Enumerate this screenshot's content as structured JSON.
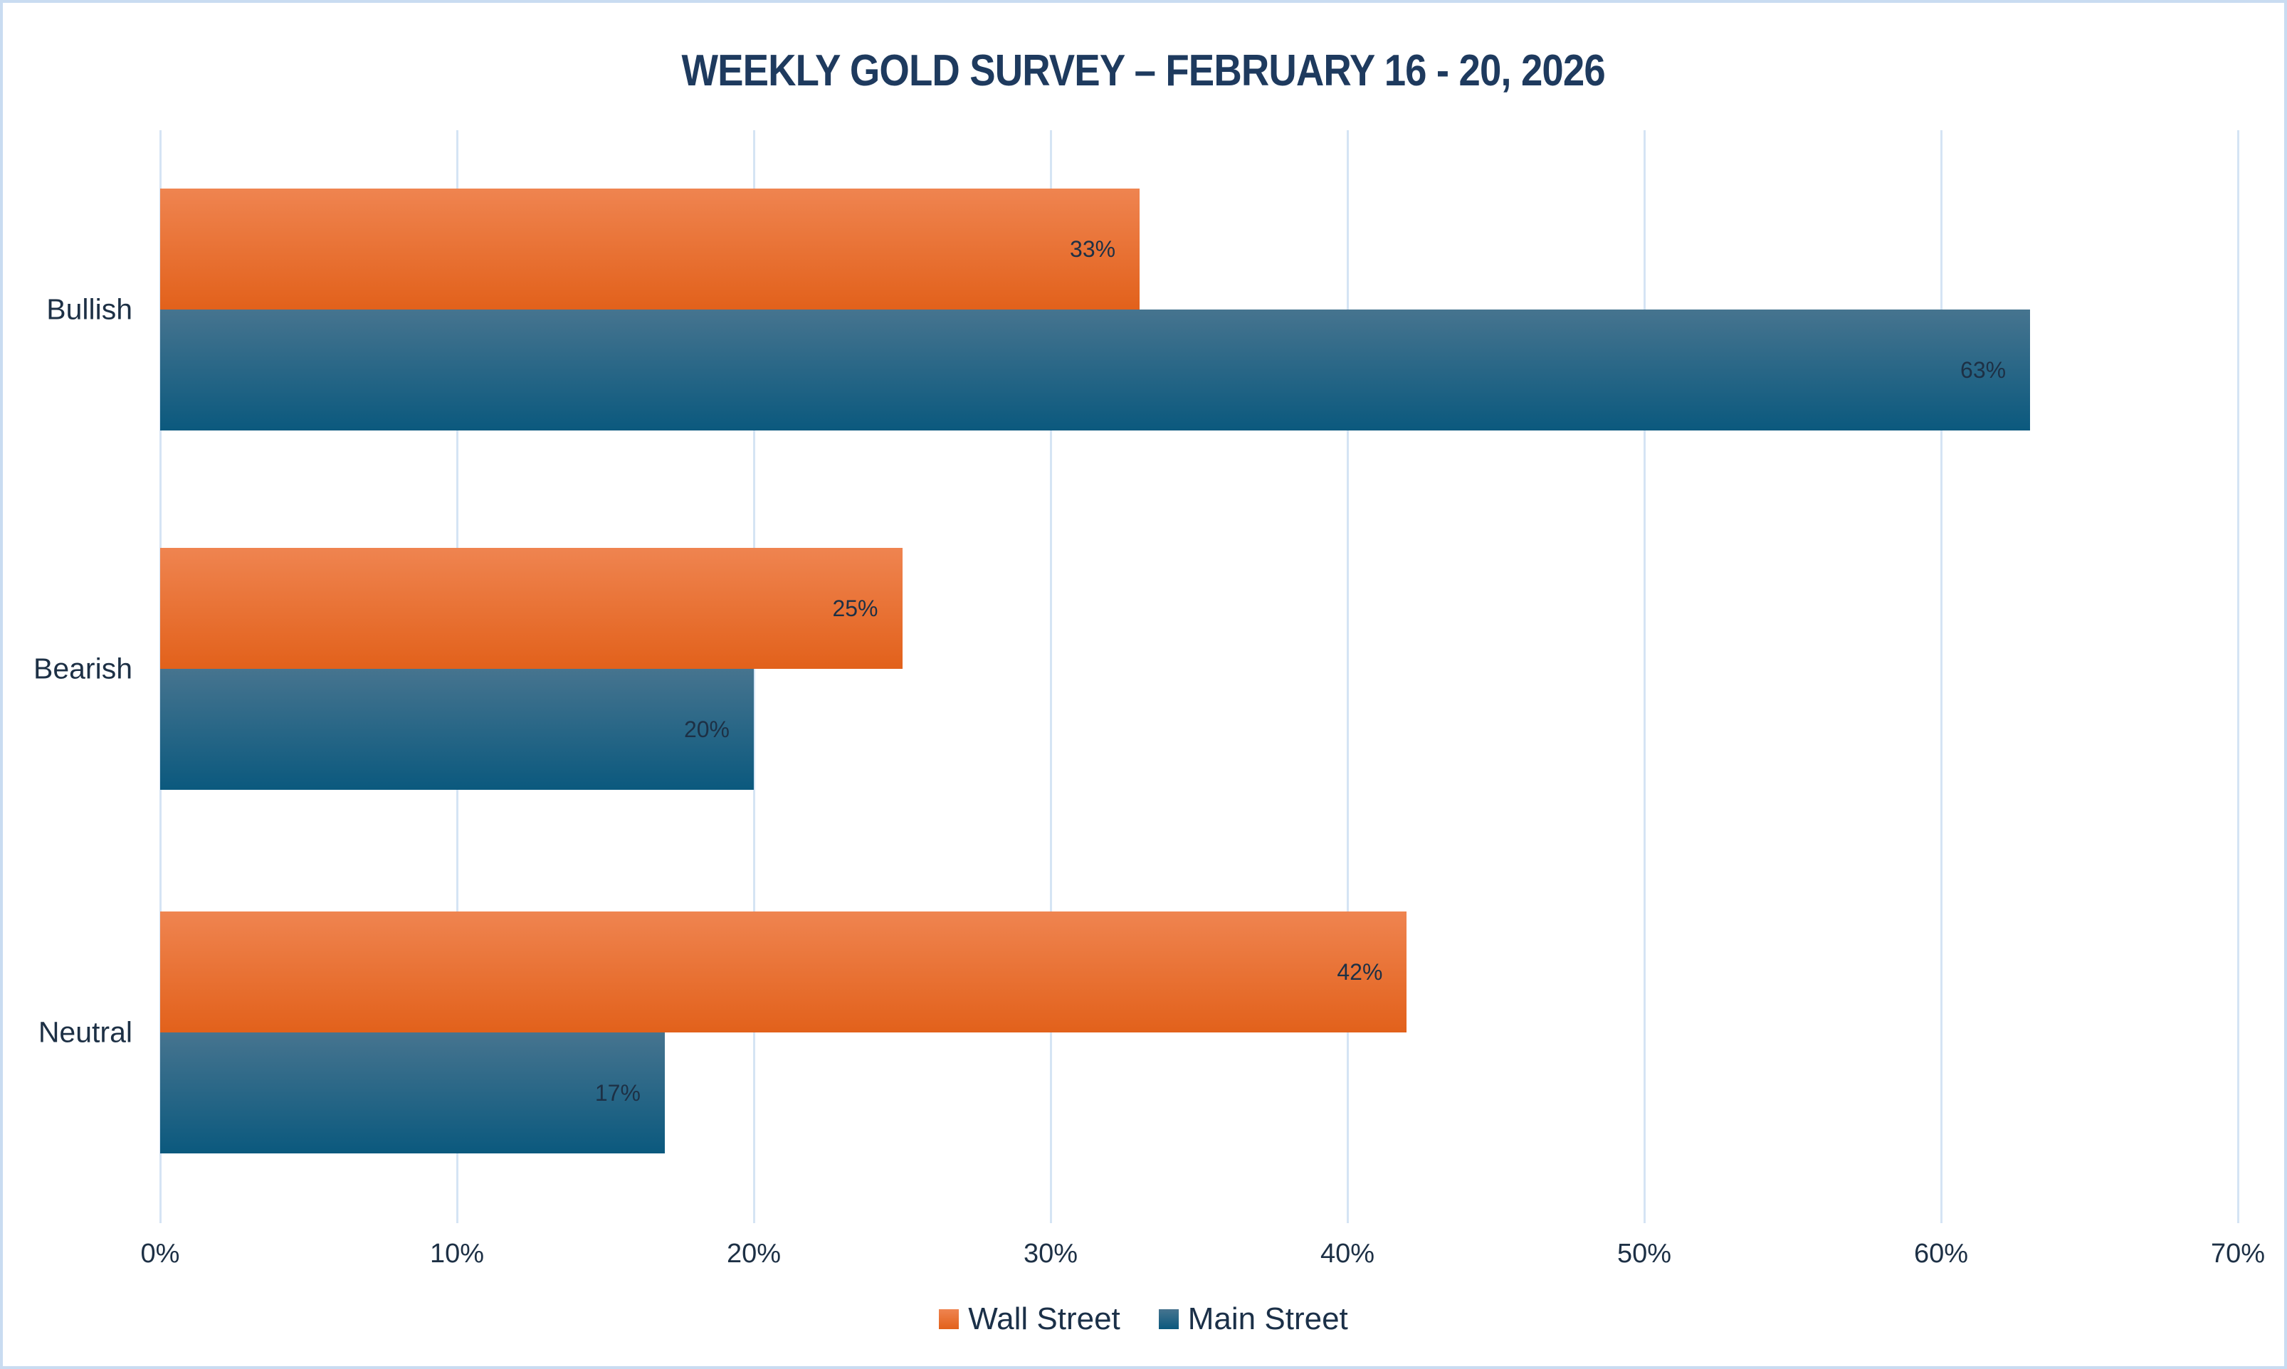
{
  "chart_data": {
    "type": "bar",
    "orientation": "horizontal",
    "title": "WEEKLY GOLD SURVEY – FEBRUARY 16 - 20, 2026",
    "categories": [
      "Bullish",
      "Bearish",
      "Neutral"
    ],
    "series": [
      {
        "name": "Wall Street",
        "values": [
          33,
          25,
          42
        ],
        "color_top": "#ef8450",
        "color_bottom": "#e2611b"
      },
      {
        "name": "Main Street",
        "values": [
          63,
          20,
          17
        ],
        "color_top": "#46748f",
        "color_bottom": "#0b597e"
      }
    ],
    "value_suffix": "%",
    "data_labels": [
      "33%",
      "63%",
      "25%",
      "20%",
      "42%",
      "17%"
    ],
    "x_ticks": [
      {
        "value": 0,
        "label": "0%"
      },
      {
        "value": 10,
        "label": "10%"
      },
      {
        "value": 20,
        "label": "20%"
      },
      {
        "value": 30,
        "label": "30%"
      },
      {
        "value": 40,
        "label": "40%"
      },
      {
        "value": 50,
        "label": "50%"
      },
      {
        "value": 60,
        "label": "60%"
      },
      {
        "value": 70,
        "label": "70%"
      }
    ],
    "xlim": [
      0,
      70
    ],
    "grid": true,
    "legend_position": "bottom",
    "colors": {
      "title_text": "#1e3a5e",
      "label_text": "#1d3045",
      "gridline": "#d5e4f4",
      "frame_border": "#c9dcf1",
      "background": "#ffffff"
    }
  }
}
